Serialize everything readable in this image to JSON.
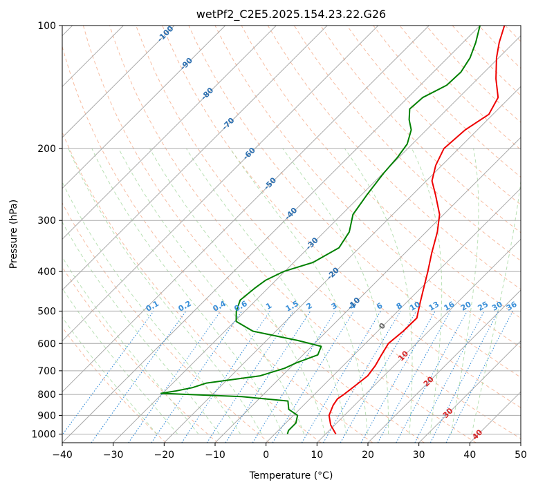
{
  "chart_data": {
    "type": "line",
    "title": "wetPf2_C2E5.2025.154.23.22.G26",
    "xlabel": "Temperature (°C)",
    "ylabel": "Pressure (hPa)",
    "xlim": [
      -40,
      50
    ],
    "ylim": [
      1050,
      100
    ],
    "y_scale": "log",
    "skew": true,
    "grid": true,
    "x_ticks": [
      -40,
      -30,
      -20,
      -10,
      0,
      10,
      20,
      30,
      40,
      50
    ],
    "y_ticks": [
      100,
      200,
      300,
      400,
      500,
      600,
      700,
      800,
      900,
      1000
    ],
    "isotherm_labels": [
      -100,
      -90,
      -80,
      -70,
      -60,
      -50,
      -40,
      -30,
      -20,
      -10,
      0,
      10,
      20,
      30,
      40
    ],
    "mixing_ratio_labels": [
      "0.1",
      "0.2",
      "0.4",
      "0.6",
      "1",
      "1.5",
      "2",
      "3",
      "4",
      "6",
      "8",
      "10",
      "13",
      "16",
      "20",
      "25",
      "30",
      "36"
    ],
    "series": [
      {
        "kind": "temperature",
        "color": "#ee0000",
        "points": [
          {
            "p": 1000,
            "t": 12
          },
          {
            "p": 950,
            "t": 9.2
          },
          {
            "p": 900,
            "t": 7.0
          },
          {
            "p": 850,
            "t": 5.8
          },
          {
            "p": 820,
            "t": 5.4
          },
          {
            "p": 800,
            "t": 5.8
          },
          {
            "p": 760,
            "t": 6.3
          },
          {
            "p": 720,
            "t": 6.8
          },
          {
            "p": 680,
            "t": 6.3
          },
          {
            "p": 640,
            "t": 5.4
          },
          {
            "p": 600,
            "t": 4.5
          },
          {
            "p": 560,
            "t": 5.0
          },
          {
            "p": 520,
            "t": 5.1
          },
          {
            "p": 480,
            "t": 2.9
          },
          {
            "p": 440,
            "t": 0.6
          },
          {
            "p": 400,
            "t": -1.9
          },
          {
            "p": 360,
            "t": -4.8
          },
          {
            "p": 320,
            "t": -7.8
          },
          {
            "p": 290,
            "t": -10.8
          },
          {
            "p": 260,
            "t": -15.4
          },
          {
            "p": 240,
            "t": -18.9
          },
          {
            "p": 220,
            "t": -21.2
          },
          {
            "p": 200,
            "t": -22.9
          },
          {
            "p": 180,
            "t": -22.4
          },
          {
            "p": 165,
            "t": -20.8
          },
          {
            "p": 150,
            "t": -22.3
          },
          {
            "p": 135,
            "t": -26.4
          },
          {
            "p": 120,
            "t": -30.4
          },
          {
            "p": 110,
            "t": -32.9
          },
          {
            "p": 100,
            "t": -35.2
          }
        ]
      },
      {
        "kind": "dewpoint",
        "color": "#008000",
        "points": [
          {
            "p": 1000,
            "t": 2.5
          },
          {
            "p": 980,
            "t": 2.0
          },
          {
            "p": 940,
            "t": 2.0
          },
          {
            "p": 900,
            "t": 0.8
          },
          {
            "p": 870,
            "t": -2.1
          },
          {
            "p": 830,
            "t": -3.9
          },
          {
            "p": 810,
            "t": -13.8
          },
          {
            "p": 795,
            "t": -30.3
          },
          {
            "p": 785,
            "t": -28.0
          },
          {
            "p": 770,
            "t": -25.3
          },
          {
            "p": 750,
            "t": -23.4
          },
          {
            "p": 720,
            "t": -14.3
          },
          {
            "p": 690,
            "t": -11.0
          },
          {
            "p": 670,
            "t": -9.8
          },
          {
            "p": 640,
            "t": -7.1
          },
          {
            "p": 610,
            "t": -8.1
          },
          {
            "p": 590,
            "t": -13.9
          },
          {
            "p": 560,
            "t": -24.5
          },
          {
            "p": 530,
            "t": -29.7
          },
          {
            "p": 500,
            "t": -31.7
          },
          {
            "p": 470,
            "t": -33.1
          },
          {
            "p": 440,
            "t": -32.6
          },
          {
            "p": 420,
            "t": -32.0
          },
          {
            "p": 400,
            "t": -30.2
          },
          {
            "p": 380,
            "t": -26.2
          },
          {
            "p": 350,
            "t": -24.0
          },
          {
            "p": 320,
            "t": -25.1
          },
          {
            "p": 290,
            "t": -27.8
          },
          {
            "p": 260,
            "t": -28.9
          },
          {
            "p": 230,
            "t": -29.9
          },
          {
            "p": 210,
            "t": -30.3
          },
          {
            "p": 195,
            "t": -31.0
          },
          {
            "p": 180,
            "t": -33.0
          },
          {
            "p": 170,
            "t": -35.4
          },
          {
            "p": 160,
            "t": -37.4
          },
          {
            "p": 150,
            "t": -37.1
          },
          {
            "p": 140,
            "t": -34.8
          },
          {
            "p": 130,
            "t": -34.6
          },
          {
            "p": 120,
            "t": -35.6
          },
          {
            "p": 110,
            "t": -37.5
          },
          {
            "p": 100,
            "t": -40.0
          }
        ]
      }
    ]
  }
}
